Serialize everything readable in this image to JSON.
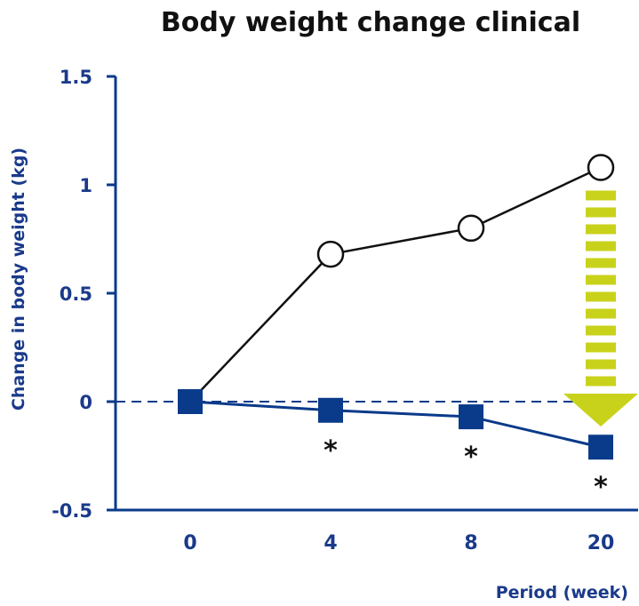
{
  "chart_data": {
    "type": "line",
    "title": "Body weight change clinical",
    "xlabel": "Period (week)",
    "ylabel": "Change in body weight (kg)",
    "categories": [
      "0",
      "4",
      "8",
      "20"
    ],
    "ylim": [
      -0.5,
      1.5
    ],
    "yticks": [
      "1.5",
      "1",
      "0.5",
      "0",
      "-0.5"
    ],
    "ytick_values": [
      1.5,
      1,
      0.5,
      0,
      -0.5
    ],
    "reference_line": 0,
    "series": [
      {
        "marker": "open-circle",
        "color": "#111111",
        "values": [
          0,
          0.68,
          0.8,
          1.08
        ]
      },
      {
        "marker": "filled-square",
        "color": "#0a3a8a",
        "values": [
          0,
          -0.04,
          -0.07,
          -0.21
        ]
      }
    ],
    "annotations": [
      {
        "text": "*",
        "category": "4"
      },
      {
        "text": "*",
        "category": "8"
      },
      {
        "text": "*",
        "category": "20"
      }
    ],
    "highlight_arrow": {
      "category": "20",
      "from": 1.08,
      "to": -0.21,
      "color": "#c9d21b"
    }
  }
}
